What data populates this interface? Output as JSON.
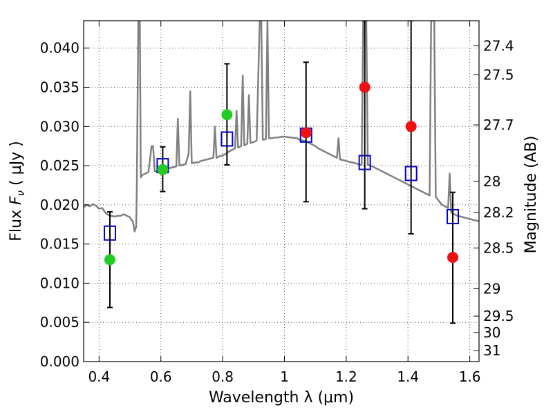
{
  "chart_data": {
    "type": "scatter",
    "xlabel": "Wavelength  λ (μm)",
    "ylabel_left": "Flux  F_ν  ( μJy )",
    "ylabel_right": "Magnitude (AB)",
    "xlim": [
      0.35,
      1.63
    ],
    "ylim": [
      0.0,
      0.0435
    ],
    "grid": true,
    "x_ticks": [
      0.4,
      0.6,
      0.8,
      1.0,
      1.2,
      1.4,
      1.6
    ],
    "x_tick_labels": [
      "0.4",
      "0.6",
      "0.8",
      "1",
      "1.2",
      "1.4",
      "1.6"
    ],
    "y_ticks": [
      0.0,
      0.005,
      0.01,
      0.015,
      0.02,
      0.025,
      0.03,
      0.035,
      0.04
    ],
    "y_tick_labels": [
      "0.000",
      "0.005",
      "0.010",
      "0.015",
      "0.020",
      "0.025",
      "0.030",
      "0.035",
      "0.040"
    ],
    "right_ticks": [
      {
        "flux": 0.0403,
        "label": "27.4"
      },
      {
        "flux": 0.0366,
        "label": "27.5"
      },
      {
        "flux": 0.0302,
        "label": "27.7"
      },
      {
        "flux": 0.023,
        "label": "28"
      },
      {
        "flux": 0.019,
        "label": "28.2"
      },
      {
        "flux": 0.0145,
        "label": "28.5"
      },
      {
        "flux": 0.0093,
        "label": "29"
      },
      {
        "flux": 0.0058,
        "label": "29.5"
      },
      {
        "flux": 0.0037,
        "label": "30"
      },
      {
        "flux": 0.0014,
        "label": "31"
      }
    ],
    "series": [
      {
        "kind": "model_spectrum",
        "color": "#808080",
        "points": [
          [
            0.35,
            0.0197
          ],
          [
            0.36,
            0.02
          ],
          [
            0.37,
            0.0198
          ],
          [
            0.38,
            0.0201
          ],
          [
            0.39,
            0.0199
          ],
          [
            0.4,
            0.0195
          ],
          [
            0.41,
            0.0196
          ],
          [
            0.42,
            0.019
          ],
          [
            0.43,
            0.0187
          ],
          [
            0.44,
            0.0186
          ],
          [
            0.45,
            0.0185
          ],
          [
            0.46,
            0.0186
          ],
          [
            0.47,
            0.0186
          ],
          [
            0.48,
            0.0188
          ],
          [
            0.49,
            0.0186
          ],
          [
            0.5,
            0.0184
          ],
          [
            0.51,
            0.0178
          ],
          [
            0.515,
            0.0166
          ],
          [
            0.52,
            0.0172
          ],
          [
            0.522,
            0.022
          ],
          [
            0.527,
            0.0435
          ],
          [
            0.532,
            0.0435
          ],
          [
            0.535,
            0.0235
          ],
          [
            0.54,
            0.0238
          ],
          [
            0.55,
            0.024
          ],
          [
            0.56,
            0.0242
          ],
          [
            0.57,
            0.0275
          ],
          [
            0.575,
            0.0275
          ],
          [
            0.58,
            0.0243
          ],
          [
            0.59,
            0.0242
          ],
          [
            0.6,
            0.0243
          ],
          [
            0.61,
            0.0244
          ],
          [
            0.62,
            0.0246
          ],
          [
            0.63,
            0.0247
          ],
          [
            0.64,
            0.0248
          ],
          [
            0.65,
            0.0249
          ],
          [
            0.655,
            0.031
          ],
          [
            0.66,
            0.025
          ],
          [
            0.67,
            0.0251
          ],
          [
            0.68,
            0.0252
          ],
          [
            0.69,
            0.0265
          ],
          [
            0.695,
            0.0345
          ],
          [
            0.7,
            0.0253
          ],
          [
            0.71,
            0.0254
          ],
          [
            0.72,
            0.0254
          ],
          [
            0.73,
            0.0256
          ],
          [
            0.74,
            0.0257
          ],
          [
            0.75,
            0.0258
          ],
          [
            0.76,
            0.0259
          ],
          [
            0.77,
            0.026
          ],
          [
            0.775,
            0.03
          ],
          [
            0.78,
            0.026
          ],
          [
            0.79,
            0.0262
          ],
          [
            0.8,
            0.0263
          ],
          [
            0.81,
            0.0265
          ],
          [
            0.82,
            0.0268
          ],
          [
            0.83,
            0.027
          ],
          [
            0.84,
            0.0272
          ],
          [
            0.845,
            0.032
          ],
          [
            0.85,
            0.0273
          ],
          [
            0.86,
            0.0275
          ],
          [
            0.865,
            0.0365
          ],
          [
            0.87,
            0.0276
          ],
          [
            0.88,
            0.0278
          ],
          [
            0.885,
            0.034
          ],
          [
            0.89,
            0.0279
          ],
          [
            0.9,
            0.028
          ],
          [
            0.91,
            0.0282
          ],
          [
            0.92,
            0.0435
          ],
          [
            0.925,
            0.0435
          ],
          [
            0.93,
            0.0283
          ],
          [
            0.94,
            0.0284
          ],
          [
            0.945,
            0.0435
          ],
          [
            0.95,
            0.0285
          ],
          [
            0.96,
            0.0285
          ],
          [
            0.97,
            0.0286
          ],
          [
            0.98,
            0.0286
          ],
          [
            0.99,
            0.0287
          ],
          [
            1.0,
            0.0287
          ],
          [
            1.02,
            0.0286
          ],
          [
            1.04,
            0.0285
          ],
          [
            1.05,
            0.0283
          ],
          [
            1.06,
            0.0282
          ],
          [
            1.07,
            0.0281
          ],
          [
            1.08,
            0.0279
          ],
          [
            1.09,
            0.0277
          ],
          [
            1.1,
            0.0275
          ],
          [
            1.11,
            0.0272
          ],
          [
            1.12,
            0.027
          ],
          [
            1.13,
            0.0268
          ],
          [
            1.14,
            0.0266
          ],
          [
            1.15,
            0.0264
          ],
          [
            1.16,
            0.0262
          ],
          [
            1.17,
            0.026
          ],
          [
            1.175,
            0.0285
          ],
          [
            1.18,
            0.0258
          ],
          [
            1.19,
            0.0257
          ],
          [
            1.2,
            0.0256
          ],
          [
            1.21,
            0.0255
          ],
          [
            1.22,
            0.0254
          ],
          [
            1.23,
            0.0253
          ],
          [
            1.24,
            0.0252
          ],
          [
            1.25,
            0.0251
          ],
          [
            1.255,
            0.0435
          ],
          [
            1.265,
            0.0435
          ],
          [
            1.27,
            0.0251
          ],
          [
            1.28,
            0.025
          ],
          [
            1.29,
            0.0248
          ],
          [
            1.3,
            0.0246
          ],
          [
            1.31,
            0.0244
          ],
          [
            1.32,
            0.0242
          ],
          [
            1.33,
            0.024
          ],
          [
            1.34,
            0.0238
          ],
          [
            1.35,
            0.0236
          ],
          [
            1.36,
            0.0234
          ],
          [
            1.37,
            0.0232
          ],
          [
            1.38,
            0.023
          ],
          [
            1.39,
            0.0228
          ],
          [
            1.4,
            0.0226
          ],
          [
            1.41,
            0.0224
          ],
          [
            1.42,
            0.0222
          ],
          [
            1.43,
            0.022
          ],
          [
            1.44,
            0.0218
          ],
          [
            1.45,
            0.0216
          ],
          [
            1.46,
            0.0214
          ],
          [
            1.47,
            0.0212
          ],
          [
            1.475,
            0.0435
          ],
          [
            1.485,
            0.0435
          ],
          [
            1.49,
            0.021
          ],
          [
            1.5,
            0.0205
          ],
          [
            1.51,
            0.02
          ],
          [
            1.52,
            0.0198
          ],
          [
            1.53,
            0.0196
          ],
          [
            1.535,
            0.024
          ],
          [
            1.54,
            0.019
          ],
          [
            1.55,
            0.0188
          ],
          [
            1.56,
            0.0186
          ],
          [
            1.57,
            0.0185
          ],
          [
            1.58,
            0.0184
          ],
          [
            1.59,
            0.0183
          ],
          [
            1.6,
            0.0182
          ],
          [
            1.61,
            0.0181
          ],
          [
            1.62,
            0.018
          ],
          [
            1.63,
            0.0179
          ]
        ]
      },
      {
        "kind": "model_photometry",
        "marker": "open-square",
        "color": "#0000cc",
        "points": [
          {
            "x": 0.435,
            "y": 0.0164
          },
          {
            "x": 0.606,
            "y": 0.025
          },
          {
            "x": 0.814,
            "y": 0.0284
          },
          {
            "x": 1.07,
            "y": 0.0289
          },
          {
            "x": 1.26,
            "y": 0.0254
          },
          {
            "x": 1.41,
            "y": 0.024
          },
          {
            "x": 1.545,
            "y": 0.0185
          }
        ]
      },
      {
        "kind": "observed",
        "marker": "filled-circle",
        "color": "#22cc22",
        "points": [
          {
            "x": 0.435,
            "y": 0.013,
            "err_low": 0.0069,
            "err_high": 0.0191
          },
          {
            "x": 0.606,
            "y": 0.0245,
            "err_low": 0.0217,
            "err_high": 0.0274
          },
          {
            "x": 0.814,
            "y": 0.0315,
            "err_low": 0.0251,
            "err_high": 0.038
          }
        ]
      },
      {
        "kind": "observed",
        "marker": "filled-circle",
        "color": "#ee1111",
        "points": [
          {
            "x": 1.07,
            "y": 0.0292,
            "err_low": 0.0204,
            "err_high": 0.0382
          },
          {
            "x": 1.26,
            "y": 0.035,
            "err_low": 0.0195,
            "err_high": 0.0435
          },
          {
            "x": 1.41,
            "y": 0.03,
            "err_low": 0.0163,
            "err_high": 0.0435
          },
          {
            "x": 1.545,
            "y": 0.0133,
            "err_low": 0.0049,
            "err_high": 0.0216
          }
        ]
      }
    ]
  }
}
